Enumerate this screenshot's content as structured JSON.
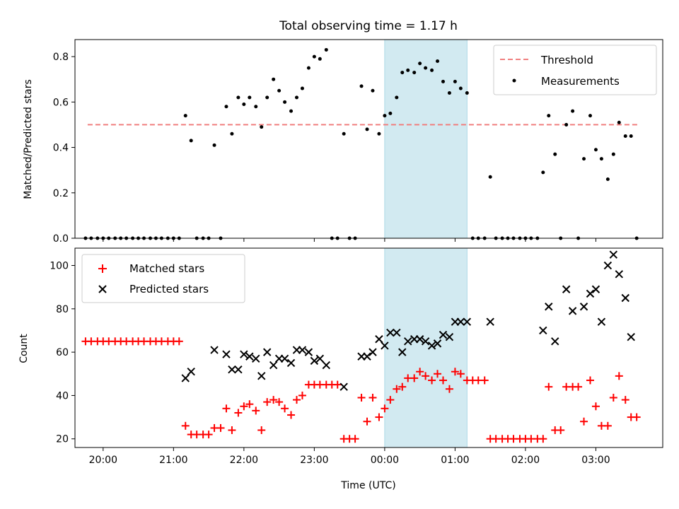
{
  "chart_data": [
    {
      "type": "scatter",
      "title": "Total observing time = 1.17 h",
      "ylabel": "Matched/Predicted stars",
      "xlabel": "",
      "xlim": [
        19.6,
        27.95
      ],
      "ylim": [
        0,
        0.875
      ],
      "yticks": [
        0.0,
        0.2,
        0.4,
        0.6,
        0.8
      ],
      "ytick_labels": [
        "0.0",
        "0.2",
        "0.4",
        "0.6",
        "0.8"
      ],
      "shaded_interval": [
        24.0,
        25.17
      ],
      "shade_color": "#add8e6",
      "legend_position": "upper right",
      "threshold": {
        "name": "Threshold",
        "y": 0.5,
        "x_range": [
          19.78,
          27.6
        ],
        "color": "#f08080",
        "style": "dashed"
      },
      "series": [
        {
          "name": "Measurements",
          "marker": "dot",
          "color": "#000000",
          "x": [
            19.75,
            19.83,
            19.92,
            20.0,
            20.08,
            20.17,
            20.25,
            20.33,
            20.42,
            20.5,
            20.58,
            20.67,
            20.75,
            20.83,
            20.92,
            21.0,
            21.08,
            21.17,
            21.25,
            21.33,
            21.42,
            21.5,
            21.58,
            21.67,
            21.75,
            21.83,
            21.92,
            22.0,
            22.08,
            22.17,
            22.25,
            22.33,
            22.42,
            22.5,
            22.58,
            22.67,
            22.75,
            22.83,
            22.92,
            23.0,
            23.08,
            23.17,
            23.25,
            23.33,
            23.42,
            23.5,
            23.58,
            23.67,
            23.75,
            23.83,
            23.92,
            24.0,
            24.08,
            24.17,
            24.25,
            24.33,
            24.42,
            24.5,
            24.58,
            24.67,
            24.75,
            24.83,
            24.92,
            25.0,
            25.08,
            25.17,
            25.25,
            25.33,
            25.42,
            25.5,
            25.58,
            25.67,
            25.75,
            25.83,
            25.92,
            26.0,
            26.08,
            26.17,
            26.25,
            26.33,
            26.42,
            26.5,
            26.58,
            26.67,
            26.75,
            26.83,
            26.92,
            27.0,
            27.08,
            27.17,
            27.25,
            27.33,
            27.42,
            27.5,
            27.58
          ],
          "y": [
            0.0,
            0.0,
            0.0,
            0.0,
            0.0,
            0.0,
            0.0,
            0.0,
            0.0,
            0.0,
            0.0,
            0.0,
            0.0,
            0.0,
            0.0,
            0.0,
            0.0,
            0.54,
            0.43,
            0.0,
            0.0,
            0.0,
            0.41,
            0.0,
            0.58,
            0.46,
            0.62,
            0.59,
            0.62,
            0.58,
            0.49,
            0.62,
            0.7,
            0.65,
            0.6,
            0.56,
            0.62,
            0.66,
            0.75,
            0.8,
            0.79,
            0.83,
            0.0,
            0.0,
            0.46,
            0.0,
            0.0,
            0.67,
            0.48,
            0.65,
            0.46,
            0.54,
            0.55,
            0.62,
            0.73,
            0.74,
            0.73,
            0.77,
            0.75,
            0.74,
            0.78,
            0.69,
            0.64,
            0.69,
            0.66,
            0.64,
            0.0,
            0.0,
            0.0,
            0.27,
            0.0,
            0.0,
            0.0,
            0.0,
            0.0,
            0.0,
            0.0,
            0.0,
            0.29,
            0.54,
            0.37,
            0.0,
            0.5,
            0.56,
            0.0,
            0.35,
            0.54,
            0.39,
            0.35,
            0.26,
            0.37,
            0.51,
            0.45,
            0.45,
            0.0
          ]
        }
      ]
    },
    {
      "type": "scatter",
      "title": "",
      "xlabel": "Time (UTC)",
      "ylabel": "Count",
      "xlim": [
        19.6,
        27.95
      ],
      "ylim": [
        16,
        108
      ],
      "yticks": [
        20,
        40,
        60,
        80,
        100
      ],
      "ytick_labels": [
        "20",
        "40",
        "60",
        "80",
        "100"
      ],
      "xticks": [
        20,
        21,
        22,
        23,
        24,
        25,
        26,
        27
      ],
      "xtick_labels": [
        "20:00",
        "21:00",
        "22:00",
        "23:00",
        "00:00",
        "01:00",
        "02:00",
        "03:00"
      ],
      "shaded_interval": [
        24.0,
        25.17
      ],
      "shade_color": "#add8e6",
      "legend_position": "upper left",
      "series": [
        {
          "name": "Matched stars",
          "marker": "plus",
          "color": "#ff0000",
          "x": [
            19.75,
            19.83,
            19.92,
            20.0,
            20.08,
            20.17,
            20.25,
            20.33,
            20.42,
            20.5,
            20.58,
            20.67,
            20.75,
            20.83,
            20.92,
            21.0,
            21.08,
            21.17,
            21.25,
            21.33,
            21.42,
            21.5,
            21.58,
            21.67,
            21.75,
            21.83,
            21.92,
            22.0,
            22.08,
            22.17,
            22.25,
            22.33,
            22.42,
            22.5,
            22.58,
            22.67,
            22.75,
            22.83,
            22.92,
            23.0,
            23.08,
            23.17,
            23.25,
            23.33,
            23.42,
            23.5,
            23.58,
            23.67,
            23.75,
            23.83,
            23.92,
            24.0,
            24.08,
            24.17,
            24.25,
            24.33,
            24.42,
            24.5,
            24.58,
            24.67,
            24.75,
            24.83,
            24.92,
            25.0,
            25.08,
            25.17,
            25.25,
            25.33,
            25.42,
            25.5,
            25.58,
            25.67,
            25.75,
            25.83,
            25.92,
            26.0,
            26.08,
            26.17,
            26.25,
            26.33,
            26.42,
            26.5,
            26.58,
            26.67,
            26.75,
            26.83,
            26.92,
            27.0,
            27.08,
            27.17,
            27.25,
            27.33,
            27.42,
            27.5,
            27.58
          ],
          "y": [
            65,
            65,
            65,
            65,
            65,
            65,
            65,
            65,
            65,
            65,
            65,
            65,
            65,
            65,
            65,
            65,
            65,
            26,
            22,
            22,
            22,
            22,
            25,
            25,
            34,
            24,
            32,
            35,
            36,
            33,
            24,
            37,
            38,
            37,
            34,
            31,
            38,
            40,
            45,
            45,
            45,
            45,
            45,
            45,
            20,
            20,
            20,
            39,
            28,
            39,
            30,
            34,
            38,
            43,
            44,
            48,
            48,
            51,
            49,
            47,
            50,
            47,
            43,
            51,
            50,
            47,
            47,
            47,
            47,
            20,
            20,
            20,
            20,
            20,
            20,
            20,
            20,
            20,
            20,
            44,
            24,
            24,
            44,
            44,
            44,
            28,
            47,
            35,
            26,
            26,
            39,
            49,
            38,
            30,
            30
          ]
        },
        {
          "name": "Predicted stars",
          "marker": "x",
          "color": "#000000",
          "x": [
            21.17,
            21.25,
            21.58,
            21.75,
            21.83,
            21.92,
            22.0,
            22.08,
            22.17,
            22.25,
            22.33,
            22.42,
            22.5,
            22.58,
            22.67,
            22.75,
            22.83,
            22.92,
            23.0,
            23.08,
            23.17,
            23.42,
            23.67,
            23.75,
            23.83,
            23.92,
            24.0,
            24.08,
            24.17,
            24.25,
            24.33,
            24.42,
            24.5,
            24.58,
            24.67,
            24.75,
            24.83,
            24.92,
            25.0,
            25.08,
            25.17,
            25.5,
            26.25,
            26.33,
            26.42,
            26.58,
            26.67,
            26.83,
            26.92,
            27.0,
            27.08,
            27.17,
            27.25,
            27.33,
            27.42,
            27.5
          ],
          "y": [
            48,
            51,
            61,
            59,
            52,
            52,
            59,
            58,
            57,
            49,
            60,
            54,
            57,
            57,
            55,
            61,
            61,
            60,
            56,
            57,
            54,
            44,
            58,
            58,
            60,
            66,
            63,
            69,
            69,
            60,
            65,
            66,
            66,
            65,
            63,
            64,
            68,
            67,
            74,
            74,
            74,
            74,
            70,
            81,
            65,
            89,
            79,
            81,
            87,
            89,
            74,
            100,
            105,
            96,
            85,
            67
          ]
        }
      ]
    }
  ]
}
